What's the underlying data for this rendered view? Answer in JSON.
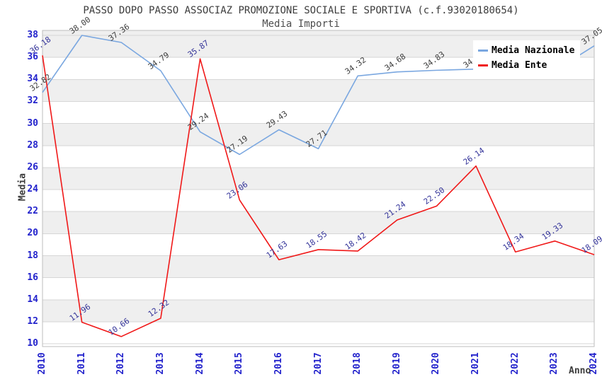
{
  "title": "PASSO DOPO PASSO ASSOCIAZ PROMOZIONE SOCIALE E SPORTIVA (c.f.93020180654)",
  "subtitle": "Media Importi",
  "chart_data": {
    "type": "line",
    "x": [
      2010,
      2011,
      2012,
      2013,
      2014,
      2015,
      2016,
      2017,
      2018,
      2019,
      2020,
      2021,
      2022,
      2023,
      2024
    ],
    "xlabel": "Anno",
    "ylabel": "Media",
    "ylim": [
      10,
      38
    ],
    "ytick_step": 2,
    "grid": true,
    "band_fill": "#efefef",
    "legend_position": "top-right",
    "series": [
      {
        "name": "Media Nazionale",
        "color": "#7aa7e0",
        "label_color": "#3c3c3c",
        "values": [
          32.82,
          38.0,
          37.36,
          34.79,
          29.24,
          27.19,
          29.43,
          27.71,
          34.32,
          34.68,
          34.83,
          34.94,
          34.9,
          34.8,
          37.05
        ],
        "labels": [
          "32.82",
          "38.00",
          "37.36",
          "34.79",
          "29.24",
          "27.19",
          "29.43",
          "27.71",
          "34.32",
          "34.68",
          "34.83",
          "34.94",
          "",
          "",
          "37.05"
        ]
      },
      {
        "name": "Media Ente",
        "color": "#f01818",
        "label_color": "#333399",
        "values": [
          36.18,
          11.96,
          10.66,
          12.32,
          35.87,
          23.06,
          17.63,
          18.55,
          18.42,
          21.24,
          22.5,
          26.14,
          18.34,
          19.33,
          18.09
        ],
        "labels": [
          "36.18",
          "11.96",
          "10.66",
          "12.32",
          "35.87",
          "23.06",
          "17.63",
          "18.55",
          "18.42",
          "21.24",
          "22.50",
          "26.14",
          "18.34",
          "19.33",
          "18.09"
        ]
      }
    ]
  },
  "legend": {
    "items": [
      {
        "label": "Media Nazionale",
        "color": "#7aa7e0"
      },
      {
        "label": "Media Ente",
        "color": "#f01818"
      }
    ]
  },
  "axis_colors": {
    "tick_label": "#2323cc",
    "axis_title": "#3c3c3c"
  }
}
